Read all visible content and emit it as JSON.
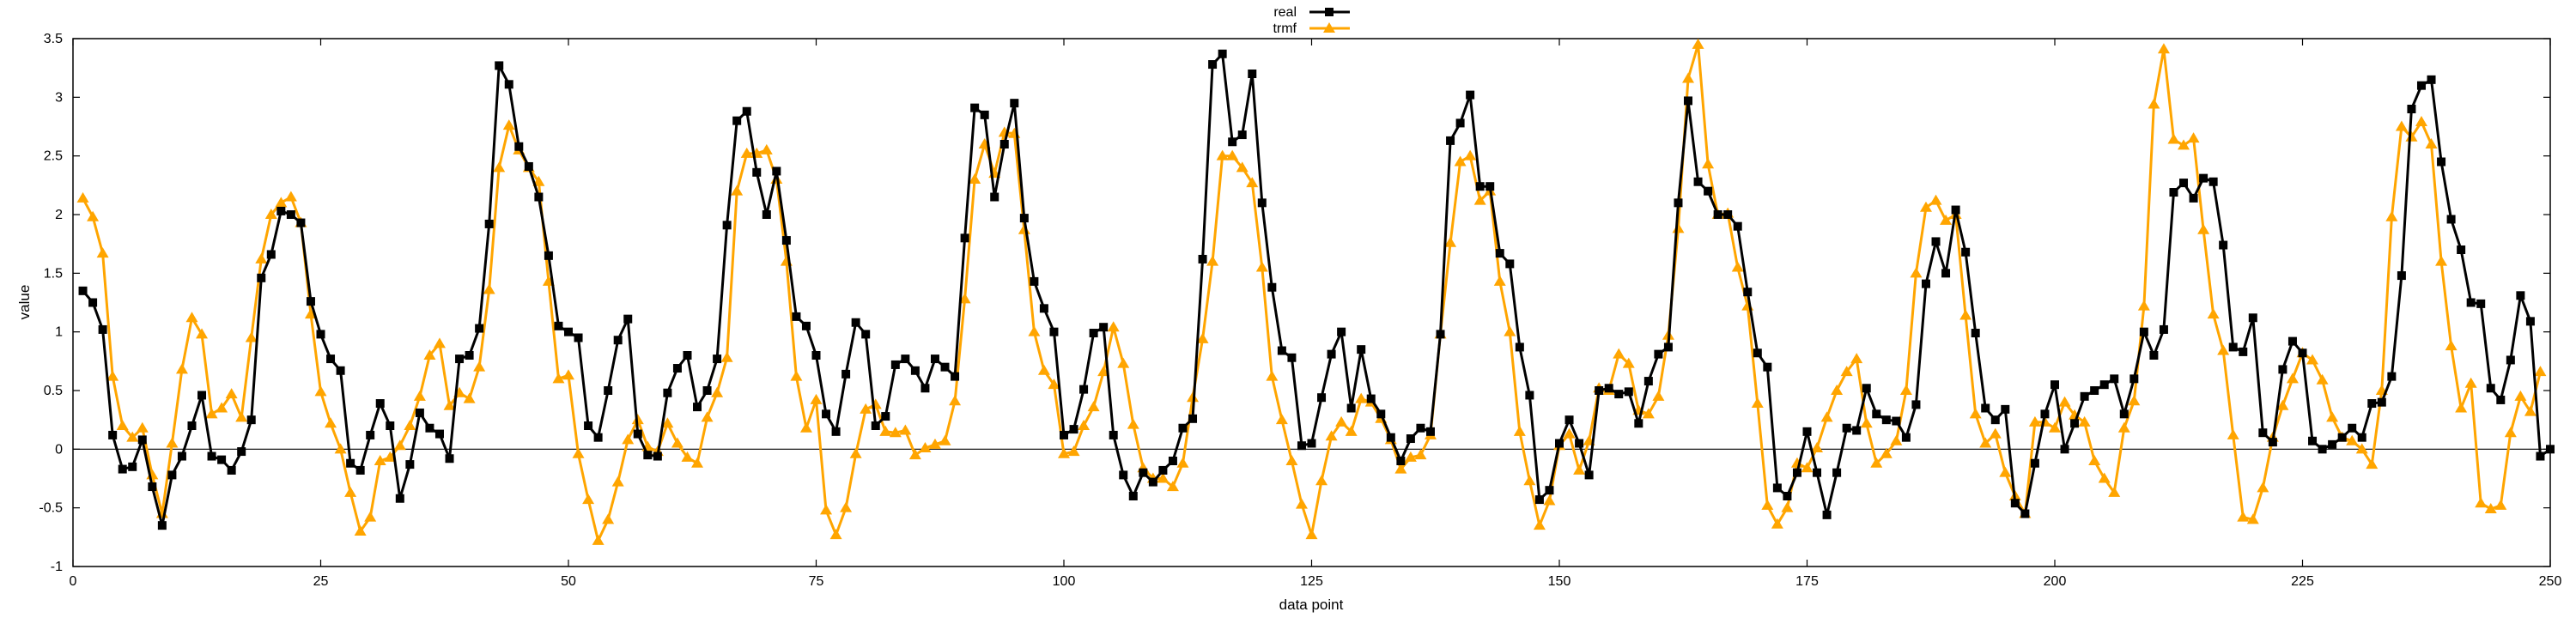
{
  "chart_data": {
    "type": "line",
    "title": "",
    "xlabel": "data point",
    "ylabel": "value",
    "xlim": [
      0,
      250
    ],
    "ylim": [
      -1,
      3.5
    ],
    "x_ticks": [
      "0",
      "25",
      "50",
      "75",
      "100",
      "125",
      "150",
      "175",
      "200",
      "225",
      "250"
    ],
    "y_ticks": [
      "-1",
      "-0.5",
      "0",
      "0.5",
      "1",
      "1.5",
      "2",
      "2.5",
      "3",
      "3.5"
    ],
    "grid": false,
    "legend_position": "top-center",
    "zero_line": true,
    "x_start": 1,
    "series": [
      {
        "name": "real",
        "color": "#000000",
        "marker": "square",
        "values": [
          1.35,
          1.25,
          1.02,
          0.12,
          -0.17,
          -0.15,
          0.08,
          -0.32,
          -0.65,
          -0.22,
          -0.06,
          0.2,
          0.46,
          -0.06,
          -0.09,
          -0.18,
          -0.02,
          0.25,
          1.46,
          1.66,
          2.03,
          2.0,
          1.93,
          1.26,
          0.98,
          0.77,
          0.67,
          -0.12,
          -0.18,
          0.12,
          0.39,
          0.2,
          -0.42,
          -0.13,
          0.31,
          0.18,
          0.13,
          -0.08,
          0.77,
          0.8,
          1.03,
          1.92,
          3.27,
          3.11,
          2.58,
          2.41,
          2.15,
          1.65,
          1.05,
          1.0,
          0.95,
          0.2,
          0.1,
          0.5,
          0.93,
          1.11,
          0.13,
          -0.05,
          -0.06,
          0.48,
          0.69,
          0.8,
          0.36,
          0.5,
          0.77,
          1.91,
          2.8,
          2.88,
          2.36,
          2.0,
          2.37,
          1.78,
          1.13,
          1.05,
          0.8,
          0.3,
          0.15,
          0.64,
          1.08,
          0.98,
          0.2,
          0.28,
          0.72,
          0.77,
          0.67,
          0.52,
          0.77,
          0.7,
          0.62,
          1.8,
          2.91,
          2.85,
          2.15,
          2.6,
          2.95,
          1.97,
          1.43,
          1.2,
          1.0,
          0.12,
          0.17,
          0.51,
          0.99,
          1.04,
          0.12,
          -0.22,
          -0.4,
          -0.2,
          -0.28,
          -0.18,
          -0.1,
          0.18,
          0.26,
          1.62,
          3.28,
          3.37,
          2.62,
          2.68,
          3.2,
          2.1,
          1.38,
          0.84,
          0.78,
          0.03,
          0.05,
          0.44,
          0.81,
          1.0,
          0.35,
          0.85,
          0.43,
          0.3,
          0.1,
          -0.1,
          0.09,
          0.18,
          0.15,
          0.98,
          2.63,
          2.78,
          3.02,
          2.24,
          2.24,
          1.67,
          1.58,
          0.87,
          0.46,
          -0.43,
          -0.35,
          0.05,
          0.25,
          0.05,
          -0.22,
          0.5,
          0.52,
          0.47,
          0.49,
          0.22,
          0.58,
          0.81,
          0.87,
          2.1,
          2.97,
          2.28,
          2.2,
          2.0,
          2.0,
          1.9,
          1.34,
          0.82,
          0.7,
          -0.33,
          -0.4,
          -0.2,
          0.15,
          -0.2,
          -0.56,
          -0.2,
          0.18,
          0.16,
          0.52,
          0.3,
          0.25,
          0.24,
          0.1,
          0.38,
          1.41,
          1.77,
          1.5,
          2.04,
          1.68,
          0.99,
          0.35,
          0.25,
          0.34,
          -0.46,
          -0.55,
          -0.12,
          0.3,
          0.55,
          0.0,
          0.22,
          0.45,
          0.5,
          0.55,
          0.6,
          0.3,
          0.6,
          1.0,
          0.8,
          1.02,
          2.19,
          2.27,
          2.14,
          2.31,
          2.28,
          1.74,
          0.87,
          0.83,
          1.12,
          0.14,
          0.06,
          0.68,
          0.92,
          0.82,
          0.07,
          0.0,
          0.04,
          0.1,
          0.18,
          0.1,
          0.39,
          0.4,
          0.62,
          1.48,
          2.9,
          3.1,
          3.15,
          2.45,
          1.96,
          1.7,
          1.25,
          1.24,
          0.52,
          0.42,
          0.76,
          1.31,
          1.09,
          -0.06,
          0.0
        ]
      },
      {
        "name": "trmf",
        "color": "#ffa500",
        "marker": "triangle",
        "values": [
          2.14,
          1.98,
          1.67,
          0.62,
          0.2,
          0.1,
          0.18,
          -0.22,
          -0.55,
          0.05,
          0.68,
          1.12,
          0.98,
          0.3,
          0.35,
          0.47,
          0.27,
          0.95,
          1.62,
          2.0,
          2.1,
          2.15,
          1.93,
          1.15,
          0.49,
          0.22,
          0.0,
          -0.37,
          -0.7,
          -0.58,
          -0.1,
          -0.07,
          0.03,
          0.2,
          0.45,
          0.8,
          0.9,
          0.37,
          0.48,
          0.43,
          0.7,
          1.36,
          2.4,
          2.76,
          2.55,
          2.4,
          2.28,
          1.43,
          0.6,
          0.63,
          -0.04,
          -0.43,
          -0.78,
          -0.6,
          -0.28,
          0.08,
          0.25,
          0.02,
          -0.02,
          0.22,
          0.05,
          -0.07,
          -0.12,
          0.27,
          0.48,
          0.78,
          2.2,
          2.52,
          2.52,
          2.55,
          2.3,
          1.6,
          0.62,
          0.18,
          0.42,
          -0.52,
          -0.73,
          -0.5,
          -0.04,
          0.34,
          0.38,
          0.15,
          0.14,
          0.16,
          -0.05,
          0.01,
          0.04,
          0.07,
          0.41,
          1.28,
          2.3,
          2.6,
          2.35,
          2.7,
          2.69,
          1.87,
          1.0,
          0.67,
          0.55,
          -0.04,
          -0.02,
          0.2,
          0.36,
          0.66,
          1.04,
          0.73,
          0.21,
          -0.16,
          -0.25,
          -0.25,
          -0.32,
          -0.12,
          0.44,
          0.94,
          1.6,
          2.5,
          2.5,
          2.4,
          2.27,
          1.55,
          0.62,
          0.25,
          -0.1,
          -0.47,
          -0.73,
          -0.27,
          0.11,
          0.23,
          0.15,
          0.43,
          0.4,
          0.26,
          0.08,
          -0.17,
          -0.07,
          -0.05,
          0.12,
          0.98,
          1.76,
          2.45,
          2.5,
          2.12,
          2.2,
          1.43,
          1.0,
          0.15,
          -0.27,
          -0.65,
          -0.44,
          0.03,
          0.13,
          -0.18,
          0.07,
          0.52,
          0.5,
          0.81,
          0.73,
          0.33,
          0.3,
          0.45,
          0.97,
          1.88,
          3.16,
          3.45,
          2.43,
          2.0,
          2.01,
          1.55,
          1.22,
          0.39,
          -0.48,
          -0.64,
          -0.5,
          -0.12,
          -0.16,
          0.01,
          0.27,
          0.5,
          0.66,
          0.77,
          0.22,
          -0.12,
          -0.04,
          0.07,
          0.5,
          1.5,
          2.06,
          2.12,
          1.95,
          2.0,
          1.14,
          0.3,
          0.05,
          0.13,
          -0.2,
          -0.4,
          -0.55,
          0.23,
          0.23,
          0.18,
          0.4,
          0.29,
          0.23,
          -0.1,
          -0.25,
          -0.37,
          0.18,
          0.41,
          1.22,
          2.94,
          3.41,
          2.64,
          2.59,
          2.65,
          1.87,
          1.15,
          0.84,
          0.12,
          -0.58,
          -0.6,
          -0.33,
          0.1,
          0.37,
          0.6,
          0.82,
          0.76,
          0.59,
          0.27,
          0.1,
          0.07,
          0.0,
          -0.13,
          0.5,
          1.98,
          2.75,
          2.66,
          2.79,
          2.6,
          1.6,
          0.88,
          0.35,
          0.56,
          -0.46,
          -0.51,
          -0.48,
          0.14,
          0.45,
          0.32,
          0.66
        ]
      }
    ]
  }
}
